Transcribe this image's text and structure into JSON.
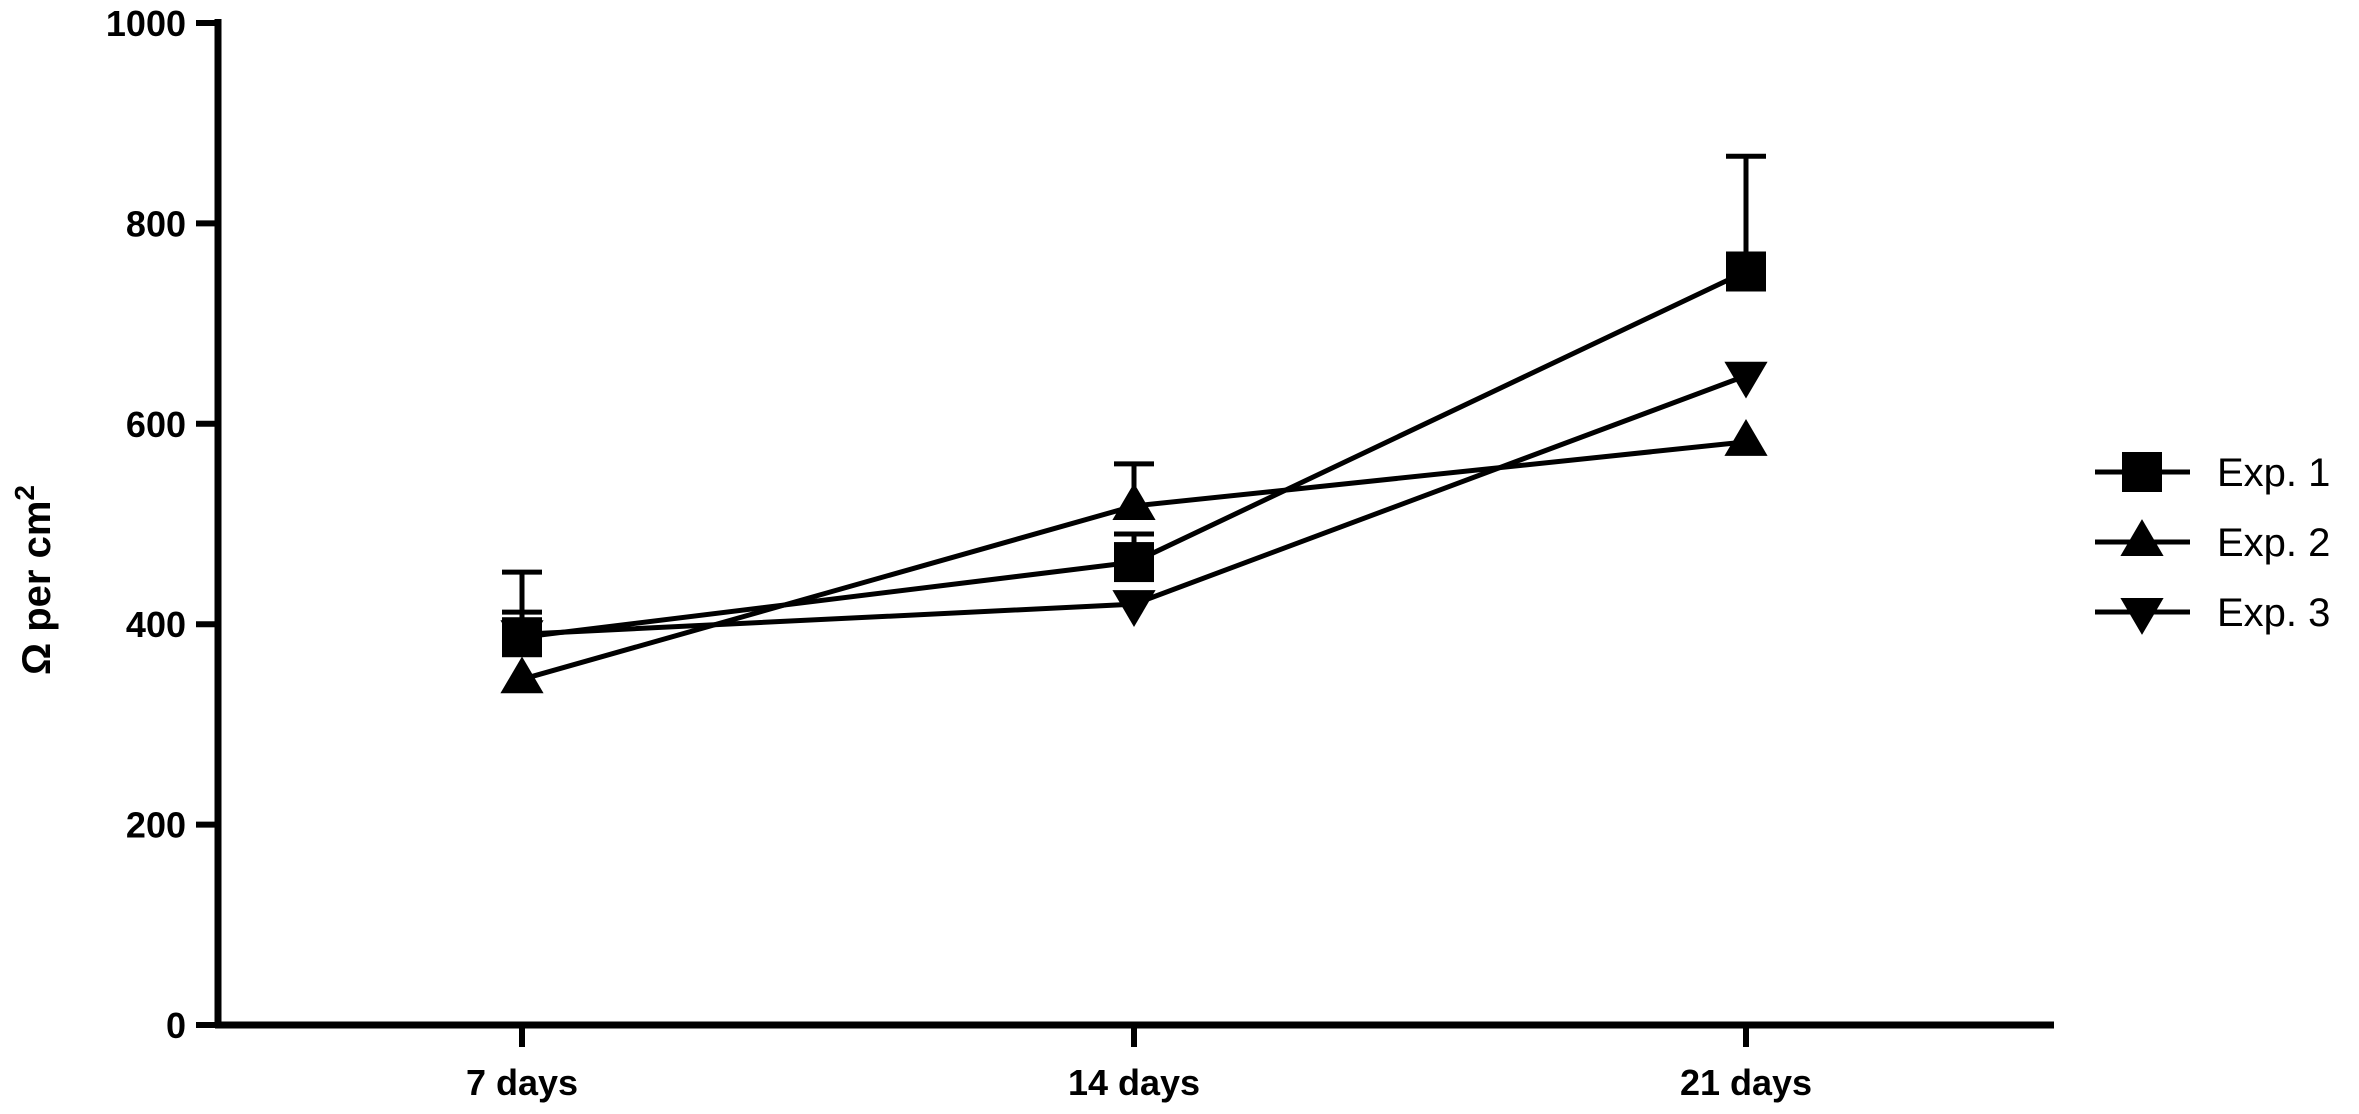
{
  "chart_data": {
    "type": "line",
    "categories": [
      "7 days",
      "14 days",
      "21 days"
    ],
    "ylabel": "Ω per cm",
    "ylabel_superscript": "2",
    "ylim": [
      0,
      1000
    ],
    "yticks": [
      0,
      200,
      400,
      600,
      800,
      1000
    ],
    "grid": false,
    "legend_position": "right",
    "series": [
      {
        "name": "Exp. 1",
        "marker": "square",
        "values": [
          387,
          462,
          752
        ],
        "error": [
          25,
          28,
          115
        ]
      },
      {
        "name": "Exp. 2",
        "marker": "triangle-up",
        "values": [
          345,
          518,
          582
        ],
        "error": [
          0,
          42,
          0
        ]
      },
      {
        "name": "Exp. 3",
        "marker": "triangle-down",
        "values": [
          390,
          420,
          648
        ],
        "error": [
          62,
          0,
          0
        ]
      }
    ],
    "colors": {
      "line": "#000000",
      "marker": "#000000"
    }
  }
}
